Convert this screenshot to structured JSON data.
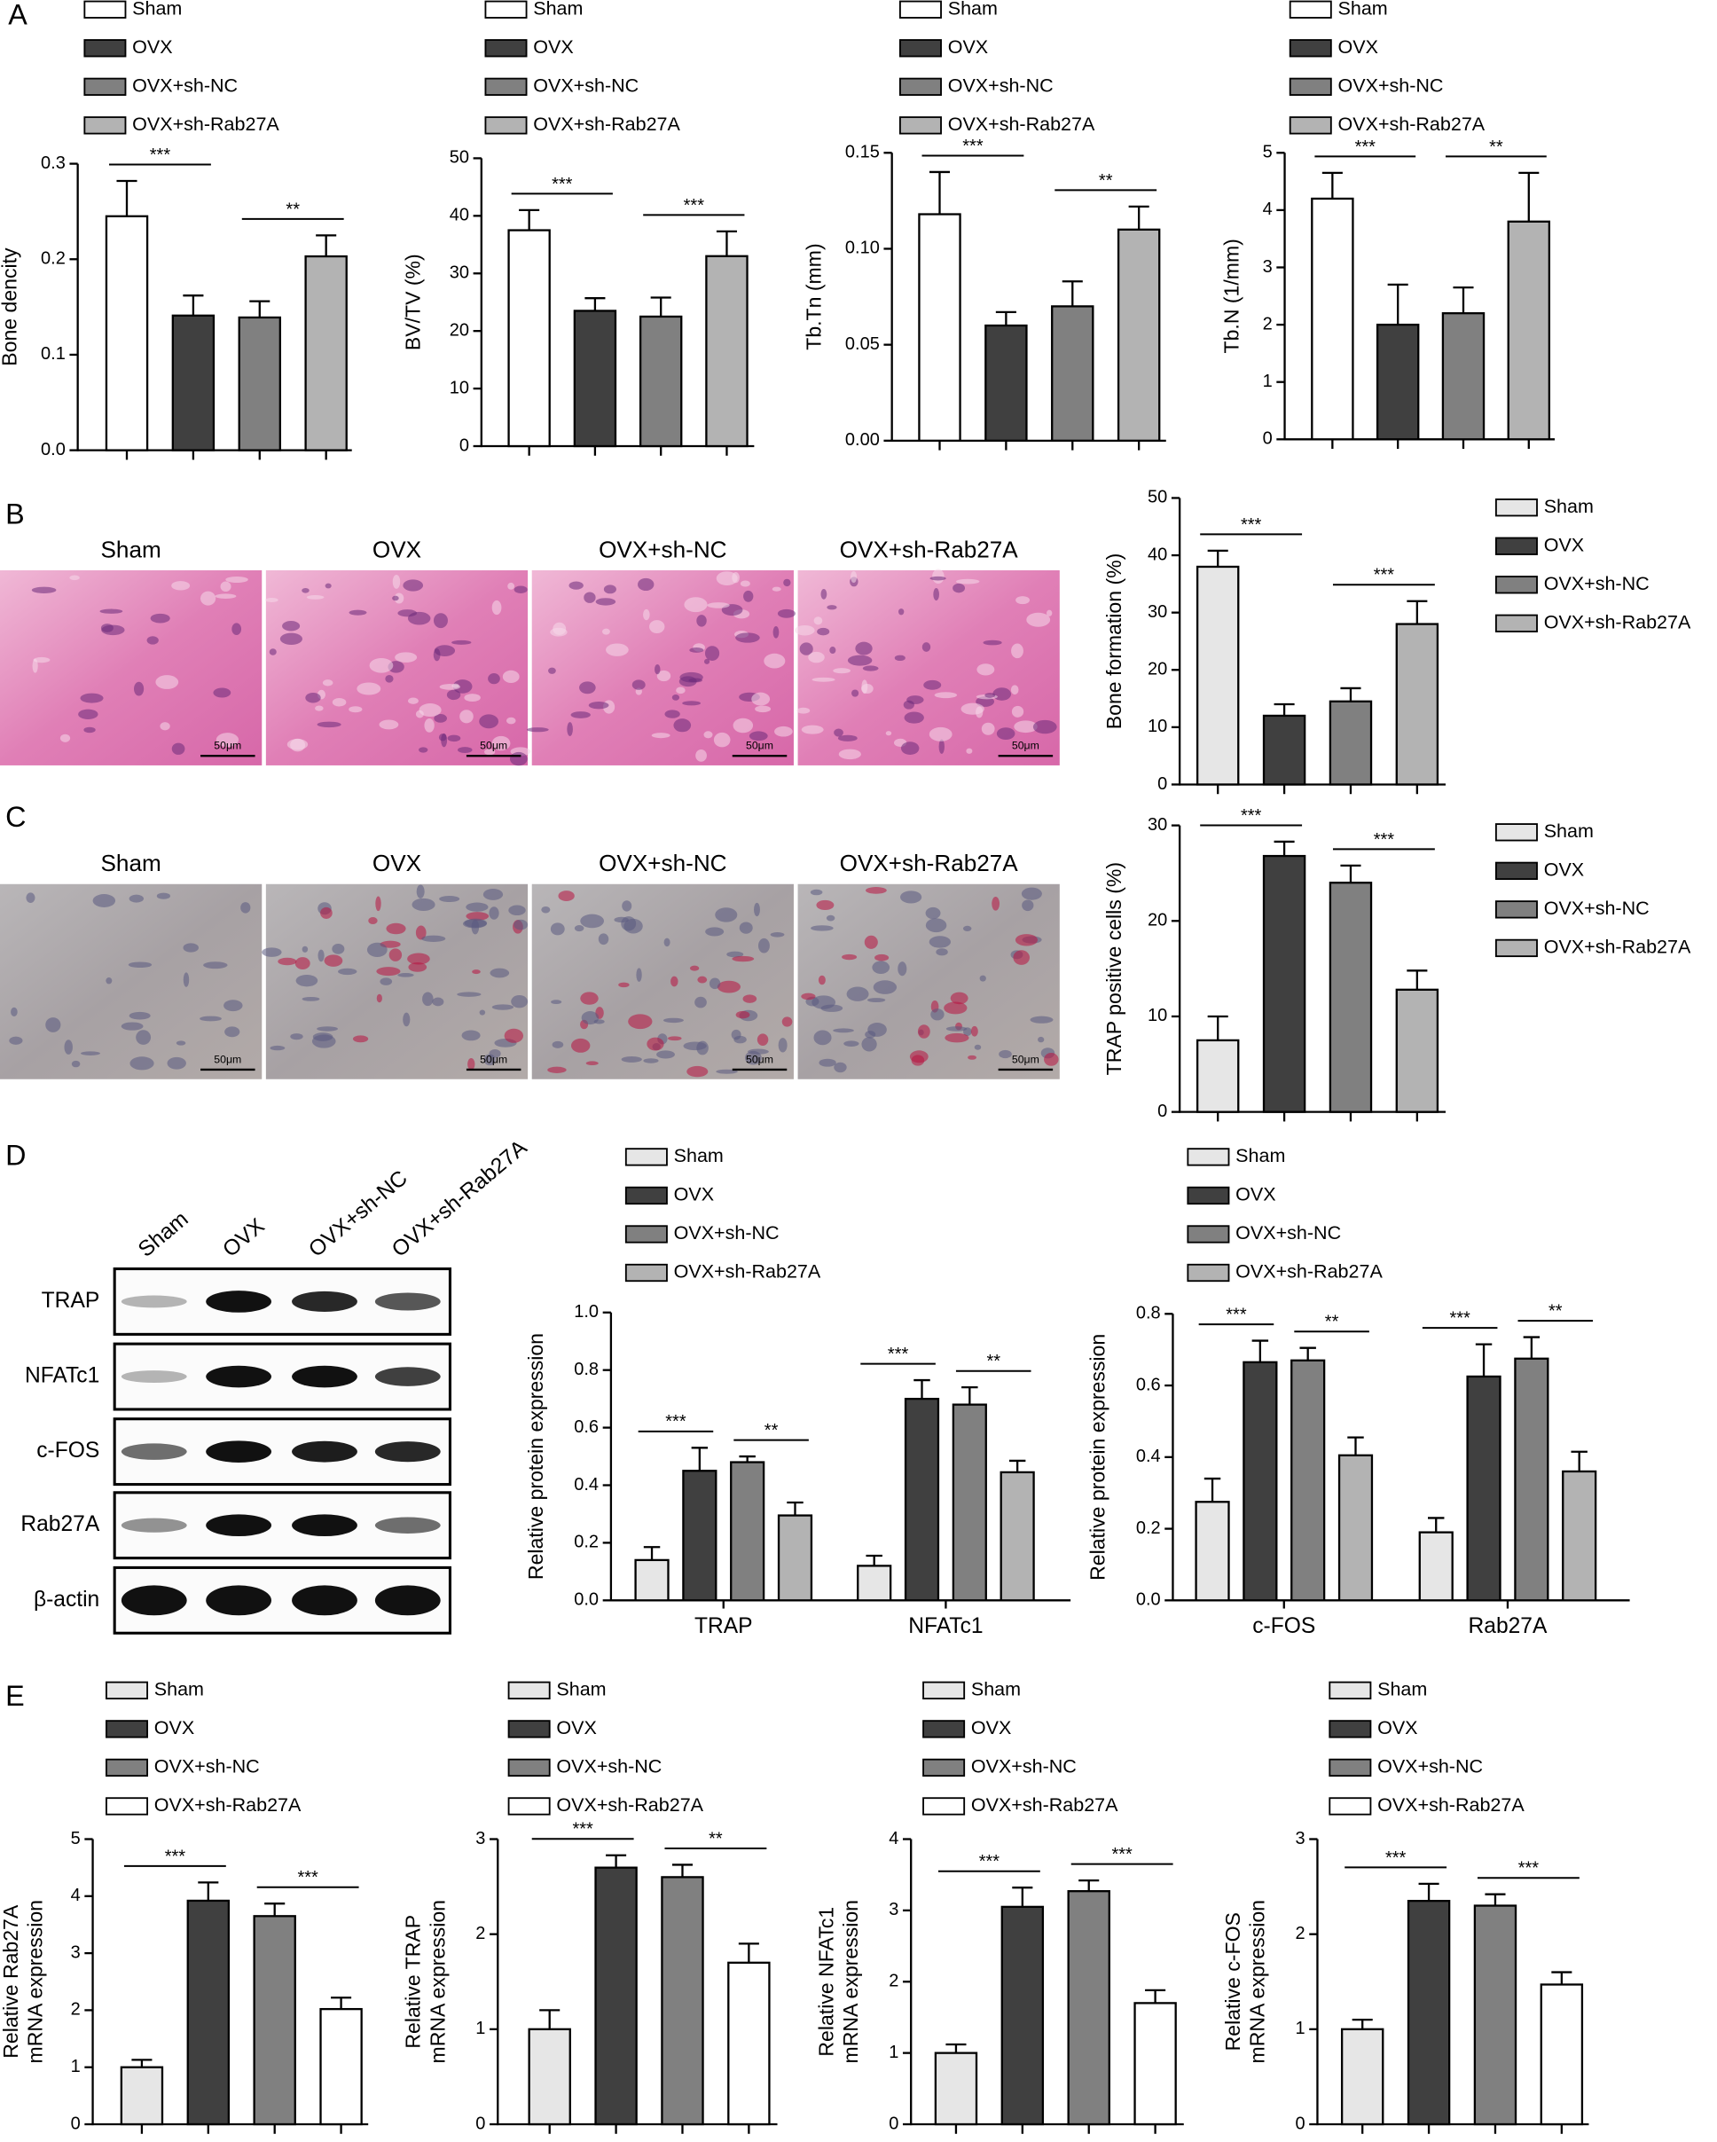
{
  "panel_labels": [
    "A",
    "B",
    "C",
    "D",
    "E"
  ],
  "histology": [
    {
      "labels": [
        "Sham",
        "OVX",
        "OVX+sh-NC",
        "OVX+sh-Rab27A"
      ],
      "scale_bar": "50μm"
    },
    {
      "labels": [
        "Sham",
        "OVX",
        "OVX+sh-NC",
        "OVX+sh-Rab27A"
      ],
      "scale_bar": "50μm"
    }
  ],
  "western_blot": {
    "lanes": [
      "Sham",
      "OVX",
      "OVX+sh-NC",
      "OVX+sh-Rab27A"
    ],
    "rows": [
      "TRAP",
      "NFATc1",
      "c-FOS",
      "Rab27A",
      "β-actin"
    ]
  },
  "chart_data": [
    {
      "type": "bar",
      "ylabel": [
        "Bone dencity"
      ],
      "categories": [
        null
      ],
      "ylim": [
        0,
        0.3
      ],
      "yticks": [
        {
          "value": 0,
          "label": "0.0"
        },
        0.1,
        0.2,
        0.3
      ],
      "series": [
        {
          "name": "Sham",
          "color": "#ffffff",
          "values": [
            0.245
          ],
          "errors": [
            0.037
          ]
        },
        {
          "name": "OVX",
          "color": "#404040",
          "values": [
            0.141
          ],
          "errors": [
            0.021
          ]
        },
        {
          "name": "OVX+sh-NC",
          "color": "#808080",
          "values": [
            0.139
          ],
          "errors": [
            0.017
          ]
        },
        {
          "name": "OVX+sh-Rab27A",
          "color": "#b3b3b3",
          "values": [
            0.203
          ],
          "errors": [
            0.022
          ]
        }
      ],
      "annotations": [
        {
          "label": "***",
          "category": 0,
          "pair": [
            0,
            1
          ]
        },
        {
          "label": "**",
          "category": 0,
          "pair": [
            2,
            3
          ]
        }
      ]
    },
    {
      "type": "bar",
      "ylabel": [
        "BV/TV (%)"
      ],
      "categories": [
        null
      ],
      "ylim": [
        0,
        50
      ],
      "yticks": [
        0,
        10,
        20,
        30,
        40,
        50
      ],
      "series": [
        {
          "name": "Sham",
          "color": "#ffffff",
          "values": [
            37.5
          ],
          "errors": [
            3.5
          ]
        },
        {
          "name": "OVX",
          "color": "#404040",
          "values": [
            23.5
          ],
          "errors": [
            2.2
          ]
        },
        {
          "name": "OVX+sh-NC",
          "color": "#808080",
          "values": [
            22.5
          ],
          "errors": [
            3.3
          ]
        },
        {
          "name": "OVX+sh-Rab27A",
          "color": "#b3b3b3",
          "values": [
            33
          ],
          "errors": [
            4.3
          ]
        }
      ],
      "annotations": [
        {
          "label": "***",
          "category": 0,
          "pair": [
            0,
            1
          ]
        },
        {
          "label": "***",
          "category": 0,
          "pair": [
            2,
            3
          ]
        }
      ]
    },
    {
      "type": "bar",
      "ylabel": [
        "Tb.Tn (mm)"
      ],
      "categories": [
        null
      ],
      "ylim": [
        0,
        0.15
      ],
      "yticks": [
        {
          "value": 0,
          "label": "0.00"
        },
        {
          "value": 0.05,
          "label": "0.05"
        },
        {
          "value": 0.1,
          "label": "0.10"
        },
        {
          "value": 0.15,
          "label": "0.15"
        }
      ],
      "series": [
        {
          "name": "Sham",
          "color": "#ffffff",
          "values": [
            0.118
          ],
          "errors": [
            0.022
          ]
        },
        {
          "name": "OVX",
          "color": "#404040",
          "values": [
            0.06
          ],
          "errors": [
            0.007
          ]
        },
        {
          "name": "OVX+sh-NC",
          "color": "#808080",
          "values": [
            0.07
          ],
          "errors": [
            0.013
          ]
        },
        {
          "name": "OVX+sh-Rab27A",
          "color": "#b3b3b3",
          "values": [
            0.11
          ],
          "errors": [
            0.012
          ]
        }
      ],
      "annotations": [
        {
          "label": "***",
          "category": 0,
          "pair": [
            0,
            1
          ]
        },
        {
          "label": "**",
          "category": 0,
          "pair": [
            2,
            3
          ]
        }
      ]
    },
    {
      "type": "bar",
      "ylabel": [
        "Tb.N (1/mm)"
      ],
      "categories": [
        null
      ],
      "ylim": [
        0,
        5
      ],
      "yticks": [
        0,
        1,
        2,
        3,
        4,
        5
      ],
      "series": [
        {
          "name": "Sham",
          "color": "#ffffff",
          "values": [
            4.2
          ],
          "errors": [
            0.45
          ]
        },
        {
          "name": "OVX",
          "color": "#404040",
          "values": [
            2.0
          ],
          "errors": [
            0.7
          ]
        },
        {
          "name": "OVX+sh-NC",
          "color": "#808080",
          "values": [
            2.2
          ],
          "errors": [
            0.45
          ]
        },
        {
          "name": "OVX+sh-Rab27A",
          "color": "#b3b3b3",
          "values": [
            3.8
          ],
          "errors": [
            0.85
          ]
        }
      ],
      "annotations": [
        {
          "label": "***",
          "category": 0,
          "pair": [
            0,
            1
          ]
        },
        {
          "label": "**",
          "category": 0,
          "pair": [
            2,
            3
          ]
        }
      ]
    },
    {
      "type": "bar",
      "ylabel": [
        "Bone formation (%)"
      ],
      "categories": [
        null
      ],
      "ylim": [
        0,
        50
      ],
      "yticks": [
        0,
        10,
        20,
        30,
        40,
        50
      ],
      "series": [
        {
          "name": "Sham",
          "color": "#e6e6e6",
          "values": [
            38
          ],
          "errors": [
            2.8
          ]
        },
        {
          "name": "OVX",
          "color": "#404040",
          "values": [
            12
          ],
          "errors": [
            2
          ]
        },
        {
          "name": "OVX+sh-NC",
          "color": "#808080",
          "values": [
            14.5
          ],
          "errors": [
            2.3
          ]
        },
        {
          "name": "OVX+sh-Rab27A",
          "color": "#b3b3b3",
          "values": [
            28
          ],
          "errors": [
            4
          ]
        }
      ],
      "annotations": [
        {
          "label": "***",
          "category": 0,
          "pair": [
            0,
            1
          ]
        },
        {
          "label": "***",
          "category": 0,
          "pair": [
            2,
            3
          ]
        }
      ]
    },
    {
      "type": "bar",
      "ylabel": [
        "TRAP positive cells (%)"
      ],
      "categories": [
        null
      ],
      "ylim": [
        0,
        30
      ],
      "yticks": [
        0,
        10,
        20,
        30
      ],
      "series": [
        {
          "name": "Sham",
          "color": "#e6e6e6",
          "values": [
            7.5
          ],
          "errors": [
            2.5
          ]
        },
        {
          "name": "OVX",
          "color": "#404040",
          "values": [
            26.8
          ],
          "errors": [
            1.5
          ]
        },
        {
          "name": "OVX+sh-NC",
          "color": "#808080",
          "values": [
            24
          ],
          "errors": [
            1.8
          ]
        },
        {
          "name": "OVX+sh-Rab27A",
          "color": "#b3b3b3",
          "values": [
            12.8
          ],
          "errors": [
            2
          ]
        }
      ],
      "annotations": [
        {
          "label": "***",
          "category": 0,
          "pair": [
            0,
            1
          ]
        },
        {
          "label": "***",
          "category": 0,
          "pair": [
            2,
            3
          ]
        }
      ]
    },
    {
      "type": "bar",
      "ylabel": [
        "Relative protein expression"
      ],
      "categories": [
        "TRAP",
        "NFATc1"
      ],
      "ylim": [
        0,
        1
      ],
      "yticks": [
        {
          "value": 0,
          "label": "0.0"
        },
        0.2,
        0.4,
        0.6,
        0.8,
        {
          "value": 1,
          "label": "1.0"
        }
      ],
      "series": [
        {
          "name": "Sham",
          "color": "#e6e6e6",
          "values": [
            0.14,
            0.12
          ],
          "errors": [
            0.045,
            0.035
          ]
        },
        {
          "name": "OVX",
          "color": "#404040",
          "values": [
            0.45,
            0.7
          ],
          "errors": [
            0.08,
            0.065
          ]
        },
        {
          "name": "OVX+sh-NC",
          "color": "#808080",
          "values": [
            0.48,
            0.68
          ],
          "errors": [
            0.02,
            0.06
          ]
        },
        {
          "name": "OVX+sh-Rab27A",
          "color": "#b3b3b3",
          "values": [
            0.295,
            0.445
          ],
          "errors": [
            0.045,
            0.04
          ]
        }
      ],
      "annotations": [
        {
          "label": "***",
          "category": 0,
          "pair": [
            0,
            1
          ]
        },
        {
          "label": "**",
          "category": 0,
          "pair": [
            2,
            3
          ]
        },
        {
          "label": "***",
          "category": 1,
          "pair": [
            0,
            1
          ]
        },
        {
          "label": "**",
          "category": 1,
          "pair": [
            2,
            3
          ]
        }
      ]
    },
    {
      "type": "bar",
      "ylabel": [
        "Relative protein expression"
      ],
      "categories": [
        "c-FOS",
        "Rab27A"
      ],
      "ylim": [
        0,
        0.8
      ],
      "yticks": [
        {
          "value": 0,
          "label": "0.0"
        },
        0.2,
        0.4,
        0.6,
        0.8
      ],
      "series": [
        {
          "name": "Sham",
          "color": "#e6e6e6",
          "values": [
            0.275,
            0.19
          ],
          "errors": [
            0.065,
            0.04
          ]
        },
        {
          "name": "OVX",
          "color": "#404040",
          "values": [
            0.665,
            0.625
          ],
          "errors": [
            0.06,
            0.09
          ]
        },
        {
          "name": "OVX+sh-NC",
          "color": "#808080",
          "values": [
            0.67,
            0.675
          ],
          "errors": [
            0.035,
            0.06
          ]
        },
        {
          "name": "OVX+sh-Rab27A",
          "color": "#b3b3b3",
          "values": [
            0.405,
            0.36
          ],
          "errors": [
            0.05,
            0.055
          ]
        }
      ],
      "annotations": [
        {
          "label": "***",
          "category": 0,
          "pair": [
            0,
            1
          ]
        },
        {
          "label": "**",
          "category": 0,
          "pair": [
            2,
            3
          ]
        },
        {
          "label": "***",
          "category": 1,
          "pair": [
            0,
            1
          ]
        },
        {
          "label": "**",
          "category": 1,
          "pair": [
            2,
            3
          ]
        }
      ]
    },
    {
      "type": "bar",
      "ylabel": [
        "Relative Rab27A",
        "mRNA expression"
      ],
      "categories": [
        null
      ],
      "ylim": [
        0,
        5
      ],
      "yticks": [
        0,
        1,
        2,
        3,
        4,
        5
      ],
      "series": [
        {
          "name": "Sham",
          "color": "#e6e6e6",
          "values": [
            1
          ],
          "errors": [
            0.13
          ]
        },
        {
          "name": "OVX",
          "color": "#404040",
          "values": [
            3.92
          ],
          "errors": [
            0.32
          ]
        },
        {
          "name": "OVX+sh-NC",
          "color": "#808080",
          "values": [
            3.65
          ],
          "errors": [
            0.22
          ]
        },
        {
          "name": "OVX+sh-Rab27A",
          "color": "#ffffff",
          "values": [
            2.02
          ],
          "errors": [
            0.2
          ]
        }
      ],
      "annotations": [
        {
          "label": "***",
          "category": 0,
          "pair": [
            0,
            1
          ]
        },
        {
          "label": "***",
          "category": 0,
          "pair": [
            2,
            3
          ]
        }
      ]
    },
    {
      "type": "bar",
      "ylabel": [
        "Relative TRAP",
        "mRNA expression"
      ],
      "categories": [
        null
      ],
      "ylim": [
        0,
        3
      ],
      "yticks": [
        0,
        1,
        2,
        3
      ],
      "series": [
        {
          "name": "Sham",
          "color": "#e6e6e6",
          "values": [
            1
          ],
          "errors": [
            0.2
          ]
        },
        {
          "name": "OVX",
          "color": "#404040",
          "values": [
            2.7
          ],
          "errors": [
            0.13
          ]
        },
        {
          "name": "OVX+sh-NC",
          "color": "#808080",
          "values": [
            2.6
          ],
          "errors": [
            0.13
          ]
        },
        {
          "name": "OVX+sh-Rab27A",
          "color": "#ffffff",
          "values": [
            1.7
          ],
          "errors": [
            0.2
          ]
        }
      ],
      "annotations": [
        {
          "label": "***",
          "category": 0,
          "pair": [
            0,
            1
          ]
        },
        {
          "label": "**",
          "category": 0,
          "pair": [
            2,
            3
          ]
        }
      ]
    },
    {
      "type": "bar",
      "ylabel": [
        "Relative NFATc1",
        "mRNA expression"
      ],
      "categories": [
        null
      ],
      "ylim": [
        0,
        4
      ],
      "yticks": [
        0,
        1,
        2,
        3,
        4
      ],
      "series": [
        {
          "name": "Sham",
          "color": "#e6e6e6",
          "values": [
            1
          ],
          "errors": [
            0.12
          ]
        },
        {
          "name": "OVX",
          "color": "#404040",
          "values": [
            3.05
          ],
          "errors": [
            0.27
          ]
        },
        {
          "name": "OVX+sh-NC",
          "color": "#808080",
          "values": [
            3.27
          ],
          "errors": [
            0.15
          ]
        },
        {
          "name": "OVX+sh-Rab27A",
          "color": "#ffffff",
          "values": [
            1.7
          ],
          "errors": [
            0.18
          ]
        }
      ],
      "annotations": [
        {
          "label": "***",
          "category": 0,
          "pair": [
            0,
            1
          ]
        },
        {
          "label": "***",
          "category": 0,
          "pair": [
            2,
            3
          ]
        }
      ]
    },
    {
      "type": "bar",
      "ylabel": [
        "Relative c-FOS",
        "mRNA expression"
      ],
      "categories": [
        null
      ],
      "ylim": [
        0,
        3
      ],
      "yticks": [
        0,
        1,
        2,
        3
      ],
      "series": [
        {
          "name": "Sham",
          "color": "#e6e6e6",
          "values": [
            1
          ],
          "errors": [
            0.1
          ]
        },
        {
          "name": "OVX",
          "color": "#404040",
          "values": [
            2.35
          ],
          "errors": [
            0.18
          ]
        },
        {
          "name": "OVX+sh-NC",
          "color": "#808080",
          "values": [
            2.3
          ],
          "errors": [
            0.12
          ]
        },
        {
          "name": "OVX+sh-Rab27A",
          "color": "#ffffff",
          "values": [
            1.47
          ],
          "errors": [
            0.13
          ]
        }
      ],
      "annotations": [
        {
          "label": "***",
          "category": 0,
          "pair": [
            0,
            1
          ]
        },
        {
          "label": "***",
          "category": 0,
          "pair": [
            2,
            3
          ]
        }
      ]
    }
  ]
}
